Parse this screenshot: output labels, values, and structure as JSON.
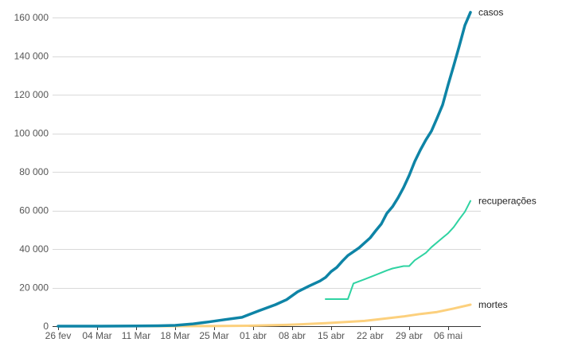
{
  "chart_data": {
    "type": "line",
    "y_ticks": [
      "0",
      "20 000",
      "40 000",
      "60 000",
      "80 000",
      "100 000",
      "120 000",
      "140 000",
      "160 000"
    ],
    "y_tick_values": [
      0,
      20000,
      40000,
      60000,
      80000,
      100000,
      120000,
      140000,
      160000
    ],
    "ylim": [
      0,
      160000
    ],
    "x_ticks": [
      "26 fev",
      "04 Mar",
      "11 Mar",
      "18 Mar",
      "25 Mar",
      "01 abr",
      "08 abr",
      "15 abr",
      "22 abr",
      "29 abr",
      "06 mai"
    ],
    "x_tick_dates": [
      "2020-02-26",
      "2020-03-04",
      "2020-03-11",
      "2020-03-18",
      "2020-03-25",
      "2020-04-01",
      "2020-04-08",
      "2020-04-15",
      "2020-04-22",
      "2020-04-29",
      "2020-05-06"
    ],
    "xlim": [
      "2020-02-26",
      "2020-05-10"
    ],
    "grid": true,
    "legend": "inline labels at the end of each line",
    "series": [
      {
        "name": "casos",
        "color": "#0e84a6",
        "points": [
          [
            "2020-02-26",
            1
          ],
          [
            "2020-03-04",
            4
          ],
          [
            "2020-03-11",
            69
          ],
          [
            "2020-03-15",
            200
          ],
          [
            "2020-03-18",
            428
          ],
          [
            "2020-03-21",
            1128
          ],
          [
            "2020-03-24",
            2201
          ],
          [
            "2020-03-27",
            3417
          ],
          [
            "2020-03-30",
            4579
          ],
          [
            "2020-03-31",
            5717
          ],
          [
            "2020-04-02",
            7910
          ],
          [
            "2020-04-05",
            11130
          ],
          [
            "2020-04-07",
            13717
          ],
          [
            "2020-04-09",
            17857
          ],
          [
            "2020-04-11",
            20727
          ],
          [
            "2020-04-13",
            23430
          ],
          [
            "2020-04-14",
            25262
          ],
          [
            "2020-04-15",
            28320
          ],
          [
            "2020-04-16",
            30425
          ],
          [
            "2020-04-17",
            33682
          ],
          [
            "2020-04-18",
            36599
          ],
          [
            "2020-04-20",
            40581
          ],
          [
            "2020-04-22",
            45757
          ],
          [
            "2020-04-23",
            49492
          ],
          [
            "2020-04-24",
            52995
          ],
          [
            "2020-04-25",
            58509
          ],
          [
            "2020-04-26",
            61888
          ],
          [
            "2020-04-27",
            66501
          ],
          [
            "2020-04-28",
            71886
          ],
          [
            "2020-04-29",
            78162
          ],
          [
            "2020-04-30",
            85380
          ],
          [
            "2020-05-01",
            91299
          ],
          [
            "2020-05-02",
            96559
          ],
          [
            "2020-05-03",
            101147
          ],
          [
            "2020-05-04",
            107780
          ],
          [
            "2020-05-05",
            114715
          ],
          [
            "2020-05-06",
            125218
          ],
          [
            "2020-05-07",
            135106
          ],
          [
            "2020-05-08",
            145328
          ],
          [
            "2020-05-09",
            155939
          ],
          [
            "2020-05-10",
            162699
          ]
        ]
      },
      {
        "name": "recuperações",
        "color": "#2fd3a2",
        "points": [
          [
            "2020-04-14",
            14026
          ],
          [
            "2020-04-16",
            14026
          ],
          [
            "2020-04-18",
            14026
          ],
          [
            "2020-04-19",
            22130
          ],
          [
            "2020-04-21",
            24300
          ],
          [
            "2020-04-23",
            26573
          ],
          [
            "2020-04-25",
            28900
          ],
          [
            "2020-04-26",
            29900
          ],
          [
            "2020-04-28",
            31142
          ],
          [
            "2020-04-29",
            31142
          ],
          [
            "2020-04-30",
            34132
          ],
          [
            "2020-05-02",
            38039
          ],
          [
            "2020-05-03",
            40937
          ],
          [
            "2020-05-05",
            45815
          ],
          [
            "2020-05-06",
            48221
          ],
          [
            "2020-05-07",
            51370
          ],
          [
            "2020-05-08",
            55474
          ],
          [
            "2020-05-09",
            59297
          ],
          [
            "2020-05-10",
            64957
          ]
        ]
      },
      {
        "name": "mortes",
        "color": "#fcd07d",
        "points": [
          [
            "2020-02-26",
            0
          ],
          [
            "2020-03-17",
            1
          ],
          [
            "2020-03-24",
            46
          ],
          [
            "2020-03-31",
            201
          ],
          [
            "2020-04-07",
            667
          ],
          [
            "2020-04-14",
            1532
          ],
          [
            "2020-04-21",
            2741
          ],
          [
            "2020-04-24",
            3704
          ],
          [
            "2020-04-28",
            5017
          ],
          [
            "2020-05-01",
            6329
          ],
          [
            "2020-05-04",
            7321
          ],
          [
            "2020-05-07",
            9146
          ],
          [
            "2020-05-10",
            11123
          ]
        ]
      }
    ]
  }
}
